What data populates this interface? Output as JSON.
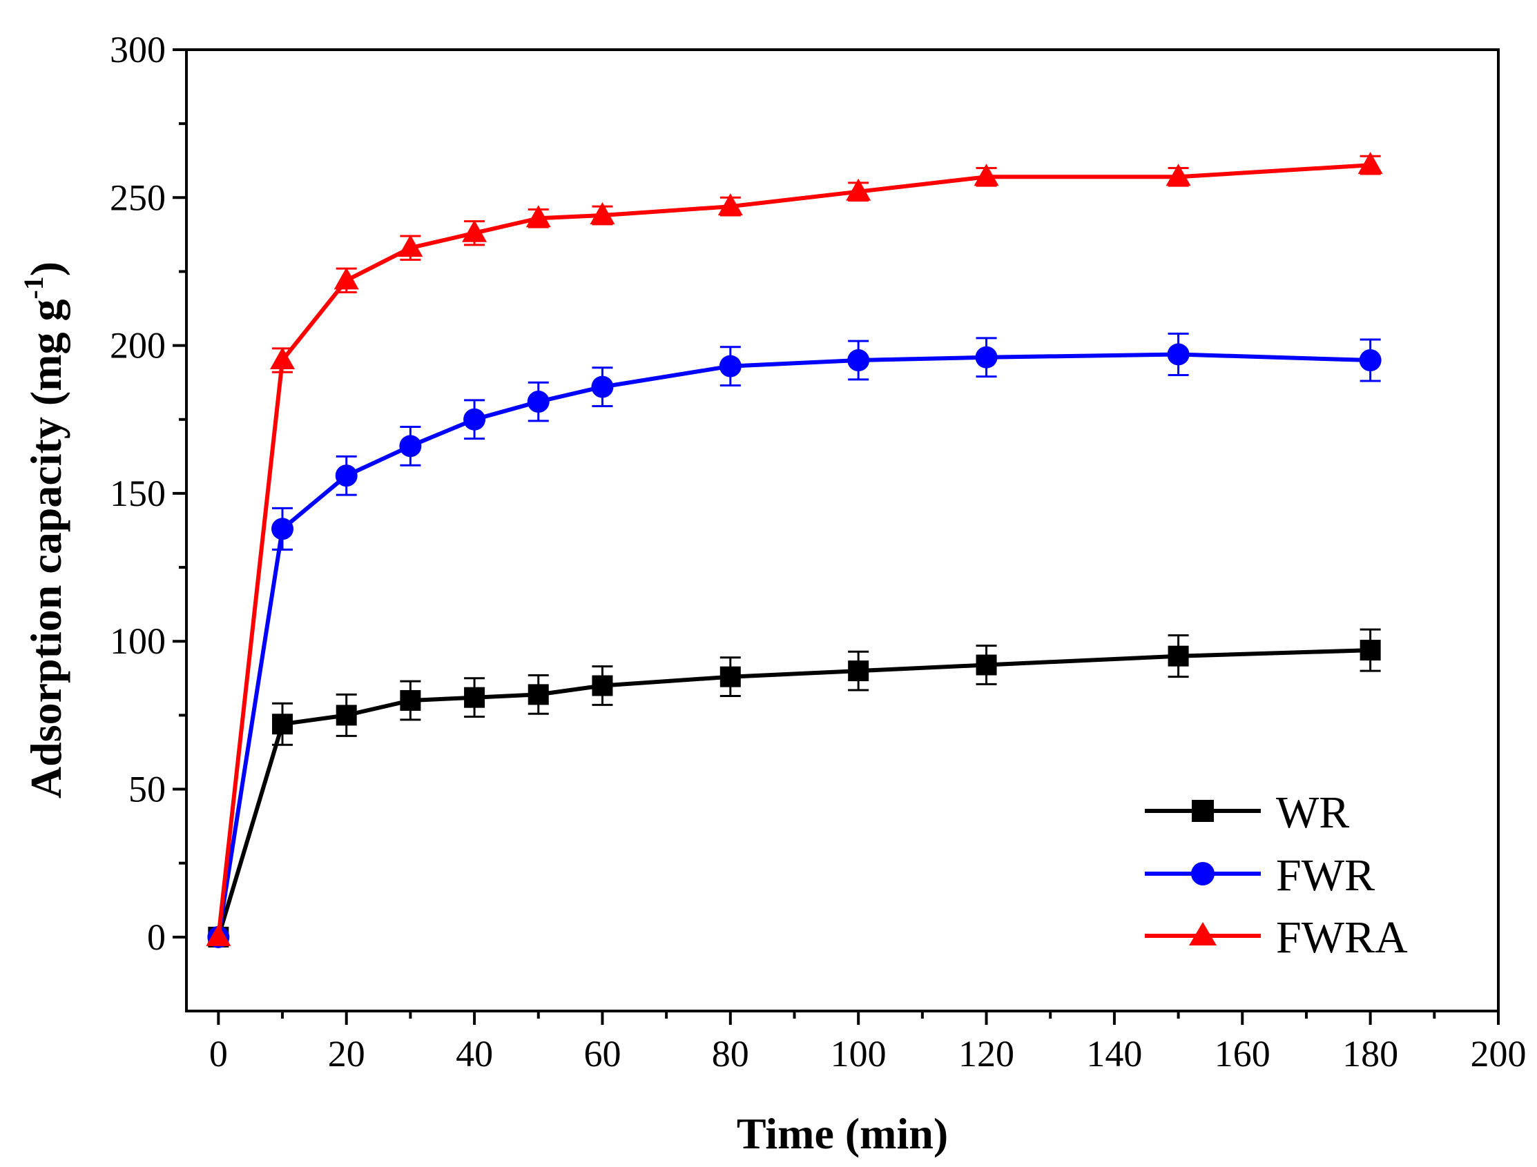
{
  "chart_data": {
    "type": "line",
    "title": "",
    "xlabel": "Time (min)",
    "ylabel": "Adsorption capacity (mg g",
    "ylabel_superscript": "-1",
    "ylabel_close": ")",
    "xlim": [
      -5,
      200
    ],
    "ylim": [
      -25,
      300
    ],
    "xticks": [
      0,
      20,
      40,
      60,
      80,
      100,
      120,
      140,
      160,
      180,
      200
    ],
    "yticks": [
      0,
      50,
      100,
      150,
      200,
      250,
      300
    ],
    "legend_position": "bottom-right",
    "x": [
      0,
      10,
      20,
      30,
      40,
      50,
      60,
      80,
      100,
      120,
      150,
      180
    ],
    "series": [
      {
        "name": "WR",
        "color": "#000000",
        "marker": "square",
        "values": [
          0,
          72,
          75,
          80,
          81,
          82,
          85,
          88,
          90,
          92,
          95,
          97
        ],
        "errors": [
          0,
          7,
          7,
          6.5,
          6.5,
          6.5,
          6.5,
          6.5,
          6.5,
          6.5,
          7,
          7
        ]
      },
      {
        "name": "FWR",
        "color": "#0000ff",
        "marker": "circle",
        "values": [
          0,
          138,
          156,
          166,
          175,
          181,
          186,
          193,
          195,
          196,
          197,
          195
        ],
        "errors": [
          0,
          7,
          6.5,
          6.5,
          6.5,
          6.5,
          6.5,
          6.5,
          6.5,
          6.5,
          7,
          7
        ]
      },
      {
        "name": "FWRA",
        "color": "#ff0000",
        "marker": "triangle",
        "values": [
          0,
          195,
          222,
          233,
          238,
          243,
          244,
          247,
          252,
          257,
          257,
          261
        ],
        "errors": [
          0,
          4,
          4,
          4,
          4,
          3,
          3,
          3,
          3,
          3,
          3,
          3
        ]
      }
    ]
  }
}
